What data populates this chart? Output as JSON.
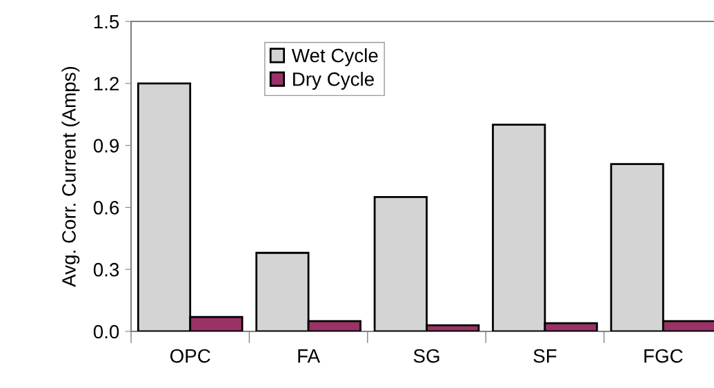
{
  "chart_data": {
    "type": "bar",
    "ylabel": "Avg. Corr. Current (Amps)",
    "categories": [
      "OPC",
      "FA",
      "SG",
      "SF",
      "FGC"
    ],
    "series": [
      {
        "name": "Wet Cycle",
        "color": "#d4d4d4",
        "values": [
          1.2,
          0.38,
          0.65,
          1.0,
          0.81
        ]
      },
      {
        "name": "Dry Cycle",
        "color": "#993366",
        "values": [
          0.07,
          0.05,
          0.03,
          0.04,
          0.05
        ]
      }
    ],
    "ylim": [
      0,
      1.5
    ],
    "yticks": [
      {
        "value": 0,
        "label": "0.0"
      },
      0.3,
      0.6,
      0.9,
      1.2,
      1.5
    ],
    "grid": false,
    "legend": "top"
  }
}
